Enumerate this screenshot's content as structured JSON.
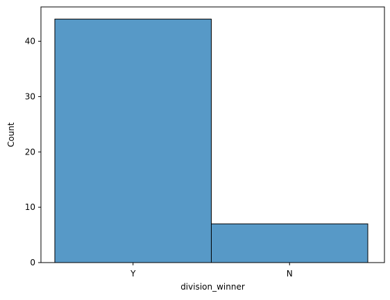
{
  "chart_data": {
    "type": "bar",
    "categories": [
      "Y",
      "N"
    ],
    "values": [
      44,
      7
    ],
    "title": "",
    "xlabel": "division_winner",
    "ylabel": "Count",
    "ylim": [
      0,
      46.2
    ],
    "yticks": [
      "0",
      "10",
      "20",
      "30",
      "40"
    ],
    "grid": false,
    "bar_color": "#5799c7",
    "edge_color": "#000000"
  }
}
